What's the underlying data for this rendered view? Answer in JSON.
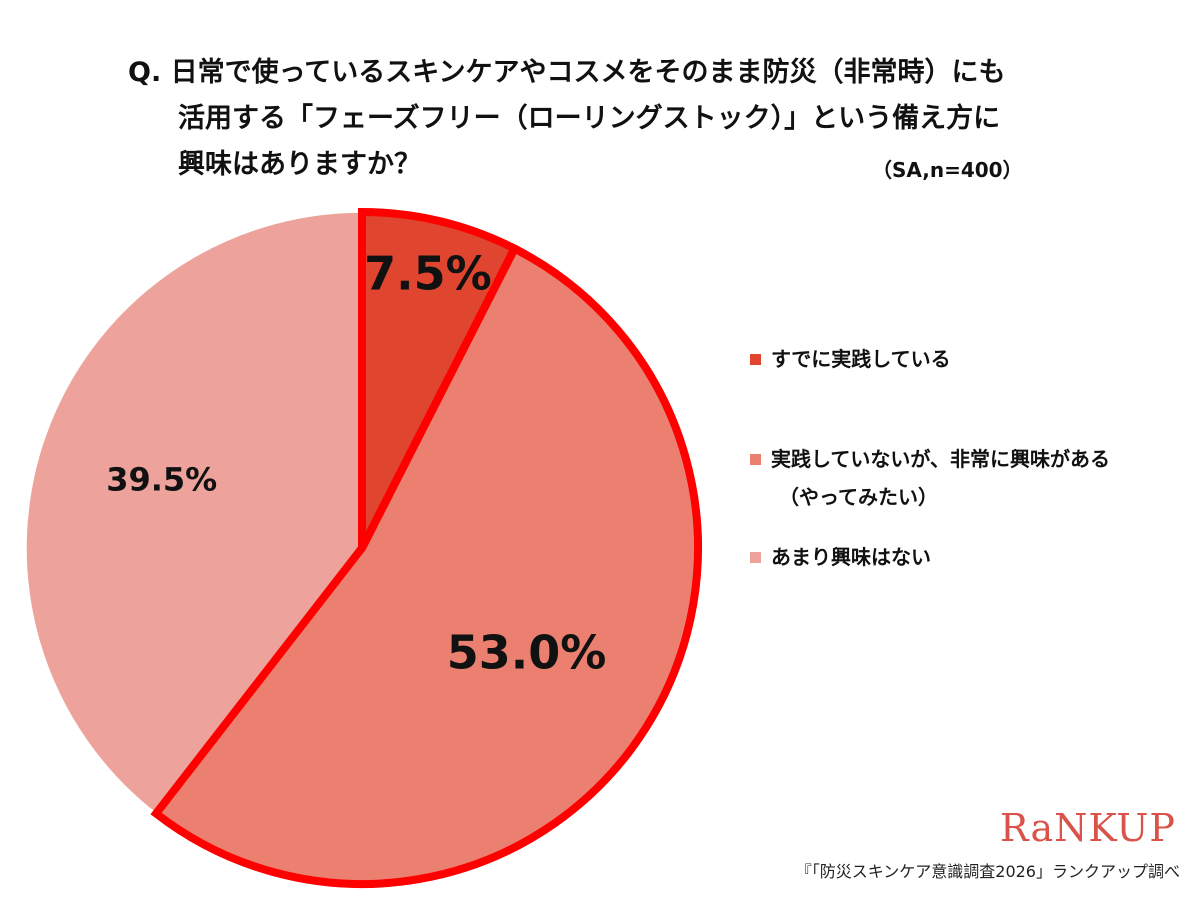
{
  "title_lines": [
    "Q. 日常で使っているスキンケアやコスメをそのまま防災（非常時）にも",
    "活用する「フェーズフリー（ローリングストック）」という備え方に",
    "興味はありますか？"
  ],
  "sample_note": "（SA,n=400）",
  "chart_data": {
    "type": "pie",
    "categories": [
      "すでに実践している",
      "実践していないが、非常に興味がある（やってみたい）",
      "あまり興味はない"
    ],
    "values": [
      7.5,
      53.0,
      39.5
    ],
    "value_labels": [
      "7.5%",
      "53.0%",
      "39.5%"
    ],
    "colors": [
      "#e04530",
      "#ec8070",
      "#eda39b"
    ],
    "highlight_color": "#ff0000",
    "highlighted_slices": [
      0,
      1
    ],
    "start": "12 o'clock",
    "direction": "clockwise",
    "legend_position": "right"
  },
  "legend": [
    {
      "label": "すでに実践している",
      "sub": ""
    },
    {
      "label": "実践していないが、非常に興味がある",
      "sub": "（やってみたい）"
    },
    {
      "label": "あまり興味はない",
      "sub": ""
    }
  ],
  "brand": "RaNKUP",
  "source": "『「防災スキンケア意識調査2026」ランクアップ調べ"
}
